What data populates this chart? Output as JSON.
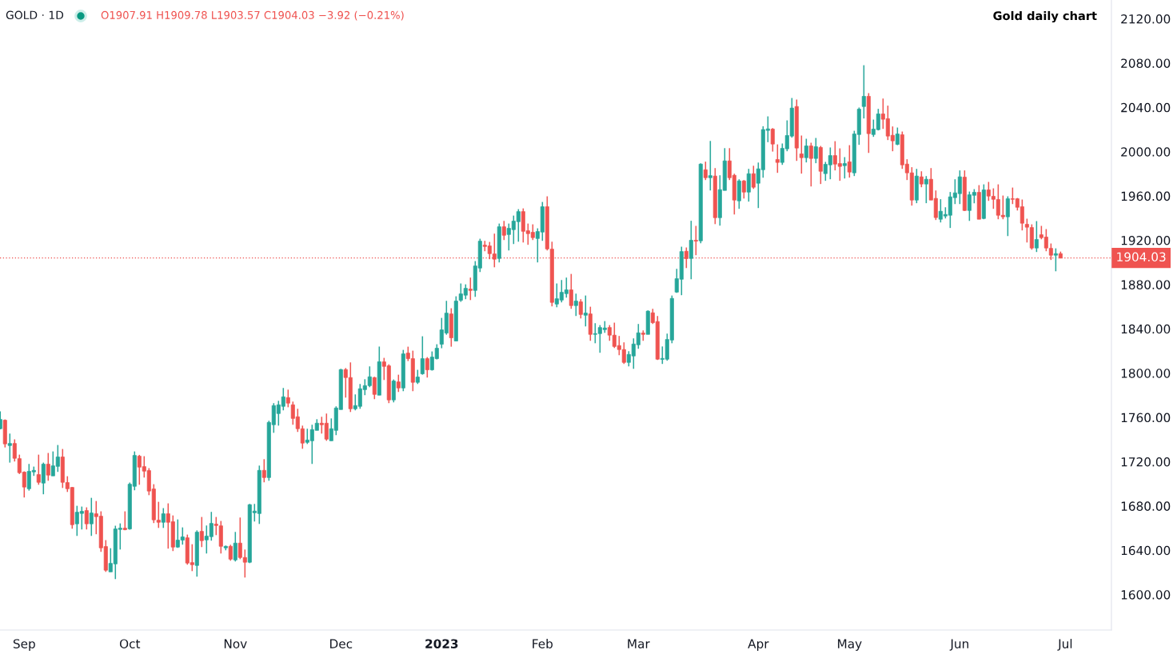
{
  "chart_data": {
    "type": "candlestick",
    "title": "Gold daily chart",
    "annotations": [
      "GOLD · 1D",
      "O1907.91 H1909.78 L1903.57 C1904.03 −3.92 (−0.21%)"
    ],
    "categories": [
      null,
      null,
      null,
      null,
      null,
      "Sep",
      null,
      null,
      null,
      null,
      null,
      null,
      null,
      null,
      null,
      null,
      null,
      null,
      null,
      null,
      null,
      null,
      null,
      null,
      null,
      null,
      null,
      "Oct",
      null,
      null,
      null,
      null,
      null,
      null,
      null,
      null,
      null,
      null,
      null,
      null,
      null,
      null,
      null,
      null,
      null,
      null,
      null,
      null,
      null,
      "Nov",
      null,
      null,
      null,
      null,
      null,
      null,
      null,
      null,
      null,
      null,
      null,
      null,
      null,
      null,
      null,
      null,
      null,
      null,
      null,
      null,
      null,
      "Dec",
      null,
      null,
      null,
      null,
      null,
      null,
      null,
      null,
      null,
      null,
      null,
      null,
      null,
      null,
      null,
      null,
      null,
      null,
      null,
      null,
      "2023",
      null,
      null,
      null,
      null,
      null,
      null,
      null,
      null,
      null,
      null,
      null,
      null,
      null,
      null,
      null,
      null,
      null,
      null,
      null,
      null,
      "Feb",
      null,
      null,
      null,
      null,
      null,
      null,
      null,
      null,
      null,
      null,
      null,
      null,
      null,
      null,
      null,
      null,
      null,
      null,
      null,
      "Mar",
      null,
      null,
      null,
      null,
      null,
      null,
      null,
      null,
      null,
      null,
      null,
      null,
      null,
      null,
      null,
      null,
      null,
      null,
      null,
      null,
      null,
      null,
      null,
      null,
      "Apr",
      null,
      null,
      null,
      null,
      null,
      null,
      null,
      null,
      null,
      null,
      null,
      null,
      null,
      null,
      null,
      null,
      null,
      null,
      "May",
      null,
      null,
      null,
      null,
      null,
      null,
      null,
      null,
      null,
      null,
      null,
      null,
      null,
      null,
      null,
      null,
      null,
      null,
      null,
      null,
      null,
      null,
      "Jun",
      null,
      null,
      null,
      null,
      null,
      null,
      null,
      null,
      null,
      null,
      null,
      null,
      null,
      null,
      null,
      null,
      null,
      null,
      null,
      null,
      null,
      "Jul"
    ],
    "ohlc": [
      [
        1749.8,
        1765.4,
        1749.3,
        1758.2
      ],
      [
        1757.5,
        1758.2,
        1732.9,
        1736.1
      ],
      [
        1734.6,
        1745.4,
        1719.2,
        1736.5
      ],
      [
        1736.5,
        1740.2,
        1720.2,
        1723.1
      ],
      [
        1722.8,
        1726.4,
        1708.9,
        1710.1
      ],
      [
        1710.6,
        1711.3,
        1687.7,
        1697.1
      ],
      [
        1695.6,
        1718.0,
        1693.9,
        1711.3
      ],
      [
        1710.8,
        1715.6,
        1707.2,
        1712.2
      ],
      [
        1708.4,
        1726.4,
        1699.2,
        1701.4
      ],
      [
        1700.7,
        1719.2,
        1690.6,
        1717.8
      ],
      [
        1717.8,
        1727.9,
        1702.8,
        1707.9
      ],
      [
        1707.2,
        1729.3,
        1707.2,
        1716.3
      ],
      [
        1715.8,
        1735.1,
        1710.8,
        1724.3
      ],
      [
        1724.3,
        1731.5,
        1696.3,
        1701.4
      ],
      [
        1701.2,
        1706.9,
        1692.7,
        1695.6
      ],
      [
        1696.8,
        1697.1,
        1659.5,
        1663.1
      ],
      [
        1663.9,
        1680.2,
        1653.0,
        1674.4
      ],
      [
        1673.3,
        1679.5,
        1658.8,
        1675.2
      ],
      [
        1675.9,
        1678.8,
        1658.8,
        1663.9
      ],
      [
        1663.9,
        1687.4,
        1653.0,
        1673.7
      ],
      [
        1673.0,
        1684.5,
        1654.5,
        1670.4
      ],
      [
        1670.8,
        1675.2,
        1638.6,
        1642.2
      ],
      [
        1643.4,
        1649.2,
        1620.5,
        1622.0
      ],
      [
        1620.5,
        1641.9,
        1620.5,
        1628.2
      ],
      [
        1627.7,
        1662.2,
        1614.0,
        1659.3
      ],
      [
        1658.8,
        1664.3,
        1640.7,
        1660.0
      ],
      [
        1660.0,
        1675.2,
        1658.1,
        1658.6
      ],
      [
        1659.3,
        1701.2,
        1658.6,
        1699.7
      ],
      [
        1697.8,
        1729.3,
        1694.2,
        1725.7
      ],
      [
        1725.0,
        1726.2,
        1699.2,
        1715.1
      ],
      [
        1715.6,
        1725.0,
        1705.7,
        1711.5
      ],
      [
        1712.0,
        1714.2,
        1689.8,
        1693.5
      ],
      [
        1695.4,
        1699.7,
        1664.6,
        1667.5
      ],
      [
        1667.2,
        1683.8,
        1660.2,
        1665.3
      ],
      [
        1665.3,
        1678.1,
        1660.2,
        1673.0
      ],
      [
        1673.0,
        1682.4,
        1641.5,
        1665.3
      ],
      [
        1665.8,
        1671.5,
        1639.3,
        1642.9
      ],
      [
        1642.9,
        1667.9,
        1642.2,
        1649.2
      ],
      [
        1649.2,
        1660.7,
        1645.1,
        1652.1
      ],
      [
        1651.3,
        1654.2,
        1627.0,
        1628.5
      ],
      [
        1628.9,
        1645.5,
        1621.2,
        1627.0
      ],
      [
        1626.3,
        1658.0,
        1616.2,
        1656.4
      ],
      [
        1657.1,
        1670.1,
        1642.9,
        1648.7
      ],
      [
        1649.4,
        1662.4,
        1637.1,
        1652.8
      ],
      [
        1652.3,
        1674.7,
        1648.7,
        1664.3
      ],
      [
        1663.6,
        1670.1,
        1653.7,
        1662.4
      ],
      [
        1662.1,
        1666.5,
        1637.1,
        1643.6
      ],
      [
        1642.2,
        1644.3,
        1640.0,
        1643.6
      ],
      [
        1643.6,
        1645.0,
        1630.6,
        1632.0
      ],
      [
        1631.3,
        1656.6,
        1629.9,
        1646.5
      ],
      [
        1646.5,
        1669.6,
        1632.0,
        1633.5
      ],
      [
        1633.5,
        1640.7,
        1615.4,
        1629.2
      ],
      [
        1629.2,
        1681.9,
        1628.4,
        1681.2
      ],
      [
        1673.9,
        1681.9,
        1666.0,
        1675.4
      ],
      [
        1673.2,
        1716.5,
        1663.8,
        1712.2
      ],
      [
        1712.2,
        1722.3,
        1701.4,
        1705.7
      ],
      [
        1705.7,
        1757.0,
        1702.8,
        1755.5
      ],
      [
        1753.4,
        1772.9,
        1746.1,
        1770.7
      ],
      [
        1763.5,
        1775.0,
        1752.6,
        1771.4
      ],
      [
        1770.0,
        1786.6,
        1766.4,
        1778.6
      ],
      [
        1777.9,
        1785.1,
        1769.2,
        1772.9
      ],
      [
        1771.4,
        1774.3,
        1753.4,
        1759.1
      ],
      [
        1760.6,
        1767.8,
        1746.9,
        1749.8
      ],
      [
        1749.8,
        1752.6,
        1731.7,
        1736.8
      ],
      [
        1737.5,
        1749.8,
        1736.0,
        1739.6
      ],
      [
        1738.9,
        1753.4,
        1718.0,
        1749.0
      ],
      [
        1748.3,
        1758.4,
        1748.3,
        1754.8
      ],
      [
        1754.8,
        1760.6,
        1745.4,
        1753.4
      ],
      [
        1754.8,
        1763.5,
        1738.9,
        1740.4
      ],
      [
        1738.9,
        1759.1,
        1738.9,
        1749.8
      ],
      [
        1748.3,
        1770.0,
        1744.0,
        1768.5
      ],
      [
        1767.1,
        1803.9,
        1767.1,
        1803.2
      ],
      [
        1803.2,
        1804.6,
        1777.9,
        1796.0
      ],
      [
        1796.0,
        1809.7,
        1764.9,
        1767.8
      ],
      [
        1767.8,
        1780.8,
        1766.4,
        1770.7
      ],
      [
        1770.0,
        1790.2,
        1767.8,
        1785.9
      ],
      [
        1785.1,
        1794.5,
        1780.1,
        1788.7
      ],
      [
        1788.7,
        1806.1,
        1787.3,
        1796.7
      ],
      [
        1796.0,
        1796.7,
        1776.5,
        1780.8
      ],
      [
        1780.1,
        1824.0,
        1780.1,
        1810.3
      ],
      [
        1810.2,
        1813.8,
        1793.8,
        1806.1
      ],
      [
        1806.6,
        1808.0,
        1772.9,
        1775.8
      ],
      [
        1775.8,
        1794.3,
        1773.6,
        1792.9
      ],
      [
        1792.1,
        1798.6,
        1783.0,
        1786.6
      ],
      [
        1786.6,
        1821.0,
        1783.7,
        1817.4
      ],
      [
        1818.1,
        1823.9,
        1810.9,
        1813.1
      ],
      [
        1813.1,
        1820.3,
        1783.7,
        1791.7
      ],
      [
        1791.7,
        1803.0,
        1790.2,
        1796.5
      ],
      [
        1799.4,
        1833.3,
        1798.6,
        1813.1
      ],
      [
        1813.1,
        1814.5,
        1796.0,
        1803.0
      ],
      [
        1803.0,
        1819.6,
        1802.3,
        1814.5
      ],
      [
        1813.1,
        1826.1,
        1812.4,
        1822.5
      ],
      [
        1826.1,
        1849.9,
        1822.5,
        1839.1
      ],
      [
        1836.2,
        1865.3,
        1834.7,
        1854.2
      ],
      [
        1853.5,
        1858.6,
        1823.9,
        1831.9
      ],
      [
        1829.0,
        1869.4,
        1829.0,
        1865.1
      ],
      [
        1865.8,
        1881.0,
        1864.4,
        1871.6
      ],
      [
        1870.4,
        1880.2,
        1866.8,
        1876.6
      ],
      [
        1875.9,
        1886.3,
        1866.0,
        1874.7
      ],
      [
        1874.7,
        1901.2,
        1868.9,
        1896.8
      ],
      [
        1894.9,
        1921.4,
        1891.3,
        1919.2
      ],
      [
        1915.6,
        1919.5,
        1910.1,
        1914.4
      ],
      [
        1914.9,
        1918.5,
        1902.9,
        1907.9
      ],
      [
        1907.7,
        1926.0,
        1895.6,
        1902.9
      ],
      [
        1903.6,
        1935.1,
        1900.0,
        1932.2
      ],
      [
        1932.2,
        1937.5,
        1920.2,
        1924.5
      ],
      [
        1925.2,
        1935.1,
        1910.8,
        1930.8
      ],
      [
        1929.6,
        1942.3,
        1916.6,
        1937.3
      ],
      [
        1936.8,
        1948.1,
        1918.7,
        1945.9
      ],
      [
        1945.9,
        1948.8,
        1918.0,
        1928.1
      ],
      [
        1928.6,
        1935.1,
        1915.9,
        1926.0
      ],
      [
        1927.2,
        1934.4,
        1920.2,
        1922.4
      ],
      [
        1921.6,
        1930.8,
        1900.0,
        1927.9
      ],
      [
        1927.4,
        1954.6,
        1919.5,
        1950.3
      ],
      [
        1950.3,
        1959.7,
        1910.8,
        1912.2
      ],
      [
        1912.0,
        1918.7,
        1860.3,
        1863.9
      ],
      [
        1862.4,
        1881.0,
        1859.5,
        1867.2
      ],
      [
        1866.0,
        1884.1,
        1863.9,
        1873.0
      ],
      [
        1871.8,
        1886.3,
        1868.2,
        1875.2
      ],
      [
        1875.2,
        1889.6,
        1858.1,
        1861.0
      ],
      [
        1861.0,
        1871.8,
        1851.6,
        1865.1
      ],
      [
        1864.4,
        1866.8,
        1849.4,
        1853.0
      ],
      [
        1852.3,
        1870.1,
        1842.2,
        1854.3
      ],
      [
        1853.5,
        1860.0,
        1829.2,
        1835.0
      ],
      [
        1835.0,
        1845.1,
        1827.0,
        1835.7
      ],
      [
        1835.7,
        1843.4,
        1818.4,
        1841.2
      ],
      [
        1839.3,
        1847.0,
        1836.4,
        1840.8
      ],
      [
        1841.2,
        1843.4,
        1829.2,
        1834.3
      ],
      [
        1834.3,
        1845.6,
        1822.7,
        1824.1
      ],
      [
        1824.9,
        1833.6,
        1816.2,
        1821.3
      ],
      [
        1821.3,
        1827.8,
        1808.3,
        1809.7
      ],
      [
        1809.7,
        1819.8,
        1806.1,
        1816.9
      ],
      [
        1815.5,
        1831.4,
        1803.9,
        1826.3
      ],
      [
        1825.6,
        1844.4,
        1822.0,
        1836.4
      ],
      [
        1836.2,
        1838.6,
        1829.2,
        1835.0
      ],
      [
        1835.0,
        1856.7,
        1835.0,
        1856.0
      ],
      [
        1854.5,
        1858.1,
        1844.4,
        1845.6
      ],
      [
        1846.6,
        1851.6,
        1811.9,
        1812.6
      ],
      [
        1812.4,
        1824.1,
        1808.3,
        1813.3
      ],
      [
        1812.6,
        1835.7,
        1811.2,
        1830.4
      ],
      [
        1829.9,
        1870.1,
        1827.0,
        1867.5
      ],
      [
        1873.2,
        1894.2,
        1872.5,
        1885.3
      ],
      [
        1884.8,
        1914.2,
        1870.4,
        1909.8
      ],
      [
        1910.1,
        1913.5,
        1894.9,
        1903.4
      ],
      [
        1903.6,
        1937.6,
        1884.8,
        1920.0
      ],
      [
        1920.0,
        1933.0,
        1906.5,
        1919.2
      ],
      [
        1919.5,
        1989.5,
        1917.3,
        1988.8
      ],
      [
        1983.7,
        1991.0,
        1974.4,
        1976.5
      ],
      [
        1976.5,
        2009.7,
        1965.0,
        1978.4
      ],
      [
        1978.0,
        1985.2,
        1934.6,
        1940.4
      ],
      [
        1940.4,
        1978.7,
        1933.2,
        1965.7
      ],
      [
        1965.0,
        2003.2,
        1965.0,
        1991.7
      ],
      [
        1991.7,
        2003.2,
        1974.4,
        1976.5
      ],
      [
        1978.7,
        1980.1,
        1943.3,
        1956.3
      ],
      [
        1955.6,
        1975.1,
        1948.4,
        1973.6
      ],
      [
        1973.6,
        1974.4,
        1957.7,
        1963.5
      ],
      [
        1963.5,
        1984.5,
        1954.9,
        1980.1
      ],
      [
        1980.1,
        1987.3,
        1966.4,
        1967.9
      ],
      [
        1971.5,
        1990.2,
        1949.1,
        1984.5
      ],
      [
        1983.7,
        2023.0,
        1976.5,
        2020.0
      ],
      [
        2019.2,
        2031.9,
        2008.6,
        2020.6
      ],
      [
        2020.4,
        2021.3,
        2000.1,
        2006.9
      ],
      [
        1992.9,
        2006.6,
        1980.9,
        1990.3
      ],
      [
        1990.3,
        2007.4,
        1988.1,
        2003.0
      ],
      [
        2002.6,
        2028.3,
        2000.4,
        2014.6
      ],
      [
        2014.1,
        2048.5,
        2012.7,
        2039.4
      ],
      [
        2040.8,
        2047.1,
        1991.7,
        2003.3
      ],
      [
        1998.0,
        2014.6,
        1980.2,
        1994.6
      ],
      [
        1994.6,
        2011.7,
        1990.3,
        2005.2
      ],
      [
        2005.2,
        2008.1,
        1968.6,
        1993.9
      ],
      [
        1993.9,
        2012.4,
        1989.6,
        2004.5
      ],
      [
        2003.8,
        2005.2,
        1970.8,
        1982.3
      ],
      [
        1980.2,
        1990.8,
        1973.7,
        1988.6
      ],
      [
        1988.1,
        2003.8,
        1975.1,
        1996.5
      ],
      [
        1996.5,
        2009.5,
        1983.1,
        1988.8
      ],
      [
        1989.3,
        2003.0,
        1973.7,
        1986.7
      ],
      [
        1987.4,
        1995.1,
        1975.8,
        1989.3
      ],
      [
        1990.8,
        2005.9,
        1976.6,
        1981.6
      ],
      [
        1980.9,
        2018.9,
        1978.0,
        2016.0
      ],
      [
        2015.5,
        2039.9,
        2006.2,
        2038.4
      ],
      [
        2040.8,
        2078.1,
        2030.0,
        2050.0
      ],
      [
        2050.0,
        2052.9,
        1998.9,
        2016.3
      ],
      [
        2015.5,
        2029.0,
        2013.4,
        2020.4
      ],
      [
        2019.9,
        2038.7,
        2019.2,
        2034.1
      ],
      [
        2034.1,
        2048.0,
        2020.6,
        2029.3
      ],
      [
        2029.8,
        2041.6,
        2010.5,
        2014.1
      ],
      [
        2014.8,
        2022.8,
        2000.4,
        2009.8
      ],
      [
        2006.6,
        2021.8,
        2005.9,
        2016.0
      ],
      [
        2015.3,
        2018.2,
        1984.5,
        1988.1
      ],
      [
        1988.8,
        1993.2,
        1974.4,
        1980.9
      ],
      [
        1980.9,
        1986.0,
        1951.3,
        1956.3
      ],
      [
        1956.3,
        1984.5,
        1953.5,
        1978.0
      ],
      [
        1977.3,
        1982.3,
        1967.9,
        1970.8
      ],
      [
        1970.8,
        1978.0,
        1953.5,
        1975.1
      ],
      [
        1975.1,
        1985.2,
        1956.3,
        1956.3
      ],
      [
        1957.8,
        1965.0,
        1938.3,
        1940.5
      ],
      [
        1939.0,
        1957.1,
        1936.1,
        1946.2
      ],
      [
        1941.9,
        1949.8,
        1939.7,
        1943.3
      ],
      [
        1942.6,
        1963.6,
        1931.1,
        1959.2
      ],
      [
        1958.5,
        1975.1,
        1952.7,
        1962.8
      ],
      [
        1962.1,
        1983.1,
        1952.7,
        1977.3
      ],
      [
        1977.0,
        1983.1,
        1946.5,
        1946.9
      ],
      [
        1946.9,
        1964.0,
        1937.5,
        1961.1
      ],
      [
        1960.6,
        1966.2,
        1953.4,
        1963.3
      ],
      [
        1963.3,
        1969.8,
        1939.0,
        1939.0
      ],
      [
        1939.7,
        1970.5,
        1939.0,
        1965.5
      ],
      [
        1965.5,
        1972.7,
        1955.6,
        1959.9
      ],
      [
        1959.7,
        1966.9,
        1948.4,
        1957.0
      ],
      [
        1956.8,
        1970.5,
        1939.0,
        1942.6
      ],
      [
        1942.6,
        1960.4,
        1939.0,
        1941.2
      ],
      [
        1941.2,
        1959.7,
        1923.8,
        1957.5
      ],
      [
        1957.5,
        1967.6,
        1952.7,
        1957.0
      ],
      [
        1957.5,
        1958.2,
        1946.9,
        1949.8
      ],
      [
        1950.3,
        1956.8,
        1928.9,
        1935.4
      ],
      [
        1934.4,
        1939.5,
        1918.0,
        1931.8
      ],
      [
        1931.5,
        1934.4,
        1911.5,
        1913.0
      ],
      [
        1913.0,
        1937.3,
        1909.4,
        1920.7
      ],
      [
        1925.0,
        1933.0,
        1920.9,
        1922.4
      ],
      [
        1922.9,
        1930.1,
        1910.1,
        1913.0
      ],
      [
        1912.7,
        1917.1,
        1902.2,
        1906.5
      ],
      [
        1906.5,
        1912.7,
        1892.0,
        1907.9
      ],
      [
        1907.91,
        1909.78,
        1903.57,
        1904.03
      ],
      null
    ],
    "colors": [
      "#26a69a",
      "#ef5350",
      "#26a69a",
      "#ef5350",
      "#ef5350",
      "#ef5350",
      "#26a69a",
      "#26a69a",
      "#ef5350",
      "#26a69a",
      "#ef5350",
      "#26a69a",
      "#26a69a",
      "#ef5350",
      "#ef5350",
      "#ef5350",
      "#26a69a",
      "#26a69a",
      "#ef5350",
      "#26a69a",
      "#ef5350",
      "#ef5350",
      "#ef5350",
      "#26a69a",
      "#26a69a",
      "#26a69a",
      "#ef5350",
      "#26a69a",
      "#26a69a",
      "#ef5350",
      "#ef5350",
      "#ef5350",
      "#ef5350",
      "#ef5350",
      "#26a69a",
      "#ef5350",
      "#ef5350",
      "#26a69a",
      "#26a69a",
      "#ef5350",
      "#ef5350",
      "#26a69a",
      "#ef5350",
      "#26a69a",
      "#26a69a",
      "#ef5350",
      "#ef5350",
      "#26a69a",
      "#ef5350",
      "#26a69a",
      "#ef5350",
      "#ef5350",
      "#26a69a",
      "#26a69a",
      "#26a69a",
      "#ef5350",
      "#26a69a",
      "#26a69a",
      "#26a69a",
      "#26a69a",
      "#ef5350",
      "#ef5350",
      "#ef5350",
      "#ef5350",
      "#26a69a",
      "#26a69a",
      "#26a69a",
      "#ef5350",
      "#ef5350",
      "#26a69a",
      "#26a69a",
      "#26a69a",
      "#ef5350",
      "#ef5350",
      "#26a69a",
      "#26a69a",
      "#26a69a",
      "#26a69a",
      "#ef5350",
      "#26a69a",
      "#ef5350",
      "#ef5350",
      "#26a69a",
      "#ef5350",
      "#26a69a",
      "#ef5350",
      "#ef5350",
      "#26a69a",
      "#26a69a",
      "#ef5350",
      "#26a69a",
      "#26a69a",
      "#26a69a",
      "#26a69a",
      "#ef5350",
      "#26a69a",
      "#26a69a",
      "#26a69a",
      "#ef5350",
      "#26a69a",
      "#26a69a",
      "#ef5350",
      "#ef5350",
      "#ef5350",
      "#26a69a",
      "#ef5350",
      "#26a69a",
      "#26a69a",
      "#26a69a",
      "#ef5350",
      "#ef5350",
      "#ef5350",
      "#26a69a",
      "#26a69a",
      "#ef5350",
      "#ef5350",
      "#26a69a",
      "#26a69a",
      "#26a69a",
      "#ef5350",
      "#26a69a",
      "#ef5350",
      "#26a69a",
      "#ef5350",
      "#26a69a",
      "#26a69a",
      "#26a69a",
      "#ef5350",
      "#ef5350",
      "#ef5350",
      "#ef5350",
      "#26a69a",
      "#26a69a",
      "#26a69a",
      "#ef5350",
      "#26a69a",
      "#ef5350",
      "#ef5350",
      "#26a69a",
      "#26a69a",
      "#26a69a",
      "#26a69a",
      "#26a69a",
      "#ef5350",
      "#26a69a",
      "#ef5350",
      "#26a69a",
      "#ef5350",
      "#26a69a",
      "#ef5350",
      "#26a69a",
      "#26a69a",
      "#ef5350",
      "#ef5350",
      "#26a69a",
      "#ef5350",
      "#26a69a",
      "#ef5350",
      "#26a69a",
      "#26a69a",
      "#26a69a",
      "#ef5350",
      "#ef5350",
      "#26a69a",
      "#26a69a",
      "#26a69a",
      "#ef5350",
      "#ef5350",
      "#26a69a",
      "#ef5350",
      "#26a69a",
      "#ef5350",
      "#26a69a",
      "#26a69a",
      "#ef5350",
      "#ef5350",
      "#26a69a",
      "#ef5350",
      "#26a69a",
      "#26a69a",
      "#26a69a",
      "#ef5350",
      "#26a69a",
      "#26a69a",
      "#ef5350",
      "#ef5350",
      "#ef5350",
      "#26a69a",
      "#ef5350",
      "#ef5350",
      "#ef5350",
      "#26a69a",
      "#ef5350",
      "#26a69a",
      "#ef5350",
      "#ef5350",
      "#26a69a",
      "#26a69a",
      "#26a69a",
      "#26a69a",
      "#26a69a",
      "#ef5350",
      "#26a69a",
      "#26a69a",
      "#ef5350",
      "#26a69a",
      "#ef5350",
      "#ef5350",
      "#ef5350",
      "#ef5350",
      "#26a69a",
      "#ef5350",
      "#ef5350",
      "#ef5350",
      "#ef5350",
      "#ef5350",
      "#26a69a",
      "#ef5350",
      "#ef5350",
      "#ef5350",
      "#26a69a",
      "#ef5350",
      null
    ],
    "ylim": [
      1568,
      2137
    ],
    "yticks": [
      {
        "value": 1600,
        "label": "1600.00"
      },
      {
        "value": 1640,
        "label": "1640.00"
      },
      {
        "value": 1680,
        "label": "1680.00"
      },
      {
        "value": 1720,
        "label": "1720.00"
      },
      {
        "value": 1760,
        "label": "1760.00"
      },
      {
        "value": 1800,
        "label": "1800.00"
      },
      {
        "value": 1840,
        "label": "1840.00"
      },
      {
        "value": 1880,
        "label": "1880.00"
      },
      {
        "value": 1920,
        "label": "1920.00"
      },
      {
        "value": 1960,
        "label": "1960.00"
      },
      {
        "value": 2000,
        "label": "2000.00"
      },
      {
        "value": 2040,
        "label": "2040.00"
      },
      {
        "value": 2080,
        "label": "2080.00"
      },
      {
        "value": 2120,
        "label": "2120.00"
      }
    ],
    "ref_lines": [
      {
        "axis": "y",
        "value": 1904.03,
        "label": "1904.03",
        "color": "#ef5350",
        "line_style": "dotted"
      }
    ]
  }
}
